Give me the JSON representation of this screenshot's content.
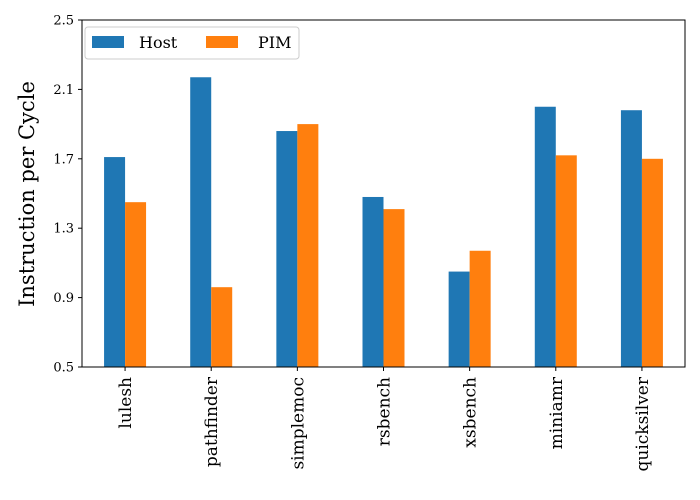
{
  "chart_data": {
    "type": "bar",
    "categories": [
      "lulesh",
      "pathfinder",
      "simplemoc",
      "rsbench",
      "xsbench",
      "miniamr",
      "quicksilver"
    ],
    "series": [
      {
        "name": "Host",
        "color": "#1f77b4",
        "values": [
          1.71,
          2.17,
          1.86,
          1.48,
          1.05,
          2.0,
          1.98
        ]
      },
      {
        "name": "PIM",
        "color": "#ff7f0e",
        "values": [
          1.45,
          0.96,
          1.9,
          1.41,
          1.17,
          1.72,
          1.7
        ]
      }
    ],
    "ylabel": "Instruction per Cycle",
    "xlabel": "",
    "ylim": [
      0.5,
      2.5
    ],
    "yticks": [
      "0.5",
      "0.9",
      "1.3",
      "1.7",
      "2.1",
      "2.5"
    ],
    "legend_position": "top-left",
    "grid": false
  }
}
